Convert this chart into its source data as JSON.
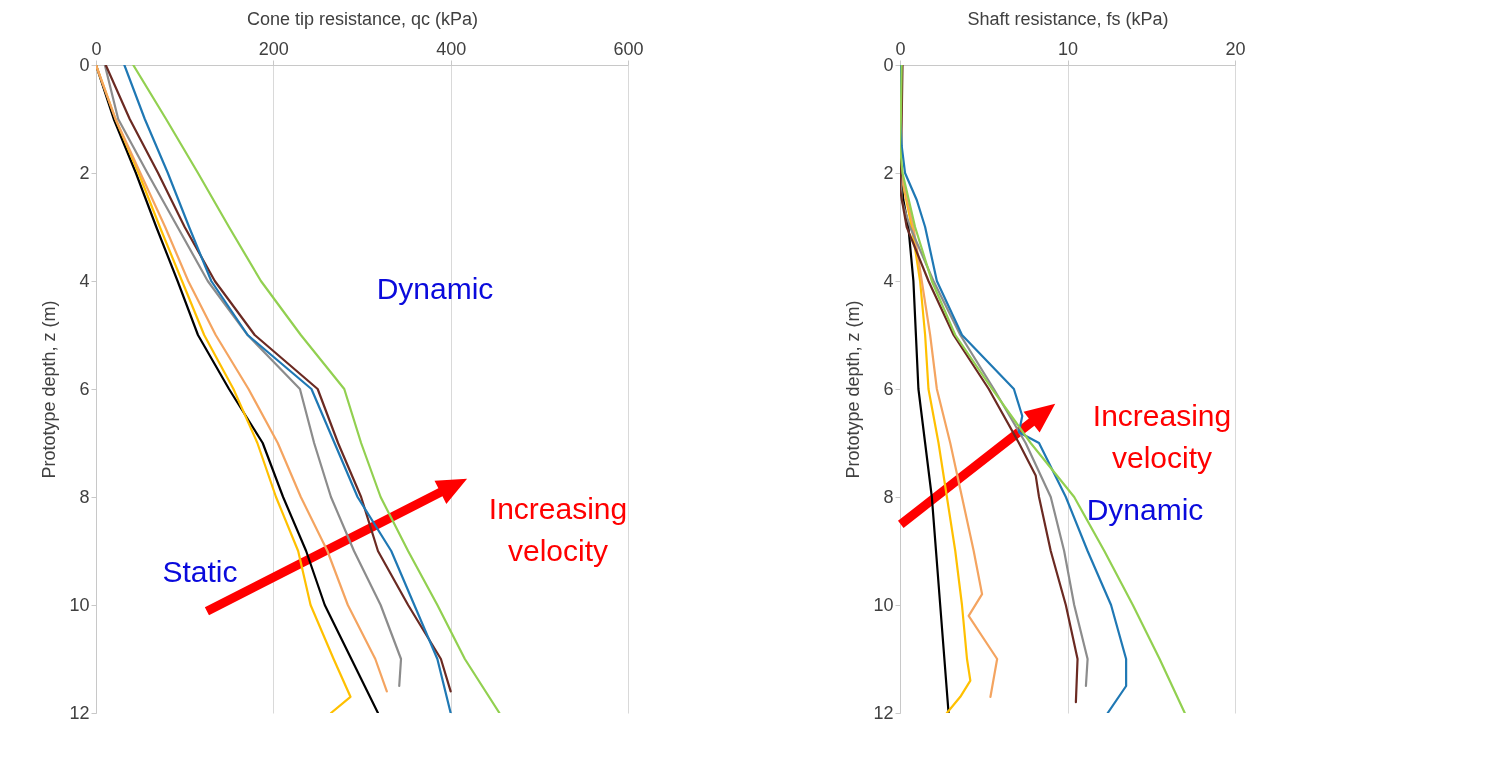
{
  "chart_data": [
    {
      "type": "line",
      "xlabel": "Cone tip resistance, qc (kPa)",
      "ylabel": "Prototype depth, z (m)",
      "xlim": [
        0,
        600
      ],
      "xticks": [
        0,
        200,
        400,
        600
      ],
      "ylim": [
        12,
        0
      ],
      "yticks": [
        0,
        2,
        4,
        6,
        8,
        10,
        12
      ],
      "grid": "x",
      "legend": false,
      "marker": "none",
      "series": [
        {
          "color": "#000000",
          "x": [
            0,
            20,
            45,
            68,
            92,
            115,
            150,
            188,
            211,
            237,
            258,
            288,
            318
          ],
          "values": [
            0,
            1,
            2,
            3,
            4,
            5,
            6,
            7,
            8,
            9,
            10,
            11,
            12
          ]
        },
        {
          "color": "#ffc000",
          "x": [
            0,
            22,
            48,
            72,
            97,
            122,
            155,
            182,
            203,
            228,
            242,
            268,
            287,
            265
          ],
          "values": [
            0,
            1,
            2,
            3,
            4,
            5,
            6,
            7,
            8,
            9,
            10,
            11,
            11.7,
            12
          ]
        },
        {
          "color": "#f4a460",
          "x": [
            0,
            22,
            50,
            78,
            104,
            135,
            172,
            205,
            231,
            261,
            284,
            315,
            328
          ],
          "values": [
            0,
            1,
            2,
            3,
            4,
            5,
            6,
            7,
            8,
            9,
            10,
            11,
            11.6
          ]
        },
        {
          "color": "#8c8c8c",
          "x": [
            10,
            25,
            58,
            92,
            126,
            171,
            230,
            246,
            265,
            291,
            321,
            344,
            342
          ],
          "values": [
            0,
            1,
            2,
            3,
            4,
            5,
            6,
            7,
            8,
            9,
            10,
            11,
            11.5
          ]
        },
        {
          "color": "#6b2a22",
          "x": [
            11,
            38,
            70,
            100,
            134,
            179,
            250,
            273,
            299,
            318,
            352,
            389,
            400
          ],
          "values": [
            0,
            1,
            2,
            3,
            4,
            5,
            6,
            7,
            8,
            9,
            10,
            11,
            11.6
          ]
        },
        {
          "color": "#1f78b4",
          "x": [
            32,
            55,
            81,
            105,
            130,
            171,
            243,
            269,
            295,
            333,
            359,
            385,
            400
          ],
          "values": [
            0,
            1,
            2,
            3,
            4,
            5,
            6,
            7,
            8,
            9,
            10,
            11,
            12
          ]
        },
        {
          "color": "#92d050",
          "x": [
            42,
            79,
            115,
            150,
            186,
            231,
            280,
            299,
            321,
            352,
            385,
            416,
            455
          ],
          "values": [
            0,
            1,
            2,
            3,
            4,
            5,
            6,
            7,
            8,
            9,
            10,
            11,
            12
          ]
        }
      ],
      "annotations": [
        "Dynamic",
        "Static",
        "Increasing velocity"
      ]
    },
    {
      "type": "line",
      "xlabel": "Shaft resistance, fs (kPa)",
      "ylabel": "Prototype depth, z (m)",
      "xlim": [
        0,
        20
      ],
      "xticks": [
        0,
        10,
        20
      ],
      "ylim": [
        12,
        0
      ],
      "yticks": [
        0,
        2,
        4,
        6,
        8,
        10,
        12
      ],
      "grid": "x",
      "legend": false,
      "marker": "none",
      "series": [
        {
          "color": "#000000",
          "x": [
            0,
            0.05,
            0.2,
            0.5,
            0.8,
            0.95,
            1.1,
            1.5,
            1.9,
            2.15,
            2.4,
            2.65,
            2.9
          ],
          "values": [
            0,
            2,
            2.5,
            3,
            4,
            5,
            6,
            7,
            8,
            9,
            10,
            11,
            12
          ]
        },
        {
          "color": "#ffc000",
          "x": [
            0,
            0.05,
            0.7,
            1.2,
            1.5,
            1.7,
            2.3,
            2.8,
            3.3,
            3.7,
            4.0,
            4.2,
            3.6,
            2.8
          ],
          "values": [
            0,
            2,
            3,
            4,
            5,
            6,
            7,
            8,
            9,
            10,
            11,
            11.4,
            11.7,
            12
          ]
        },
        {
          "color": "#f4a460",
          "x": [
            0,
            0.05,
            0.8,
            1.3,
            1.8,
            2.2,
            3.0,
            3.7,
            4.4,
            4.9,
            4.1,
            5.8,
            5.4
          ],
          "values": [
            0,
            2,
            3,
            4,
            5,
            6,
            7,
            8,
            9,
            9.8,
            10.2,
            11,
            11.7
          ]
        },
        {
          "color": "#8c8c8c",
          "x": [
            0,
            0.05,
            0.1,
            0.6,
            2.0,
            3.6,
            5.6,
            7.5,
            9.0,
            9.8,
            10.4,
            11.2,
            11.1
          ],
          "values": [
            0,
            2,
            2.5,
            3,
            4,
            5,
            6,
            7,
            8,
            9,
            10,
            11,
            11.5
          ]
        },
        {
          "color": "#6b2a22",
          "x": [
            0.15,
            0.1,
            0.05,
            0,
            0.4,
            1.7,
            3.2,
            5.3,
            7.1,
            8.1,
            8.3,
            9.0,
            9.9,
            10.6,
            10.5
          ],
          "values": [
            0,
            1,
            2,
            2.3,
            3,
            4,
            5,
            6,
            7,
            7.6,
            8,
            9,
            10,
            11,
            11.8
          ]
        },
        {
          "color": "#1f78b4",
          "x": [
            0,
            0.02,
            0.1,
            0.3,
            1.0,
            1.5,
            2.2,
            3.7,
            6.8,
            7.3,
            7.1,
            8.3,
            9.9,
            11.2,
            12.6,
            13.5,
            13.5,
            12.4
          ],
          "values": [
            0,
            1,
            1.5,
            2,
            2.5,
            3,
            4,
            5,
            6,
            6.5,
            6.8,
            7,
            8,
            9,
            10,
            11,
            11.5,
            12
          ]
        },
        {
          "color": "#92d050",
          "x": [
            0.1,
            0.05,
            0,
            0.15,
            0.9,
            1.9,
            3.3,
            5.5,
            7.8,
            10.4,
            12.2,
            13.9,
            15.5,
            17.0
          ],
          "values": [
            0,
            1,
            1.5,
            2,
            3,
            4,
            5,
            6,
            7,
            8,
            9,
            10,
            11,
            12
          ]
        }
      ],
      "annotations": [
        "Increasing velocity",
        "Dynamic"
      ]
    }
  ]
}
